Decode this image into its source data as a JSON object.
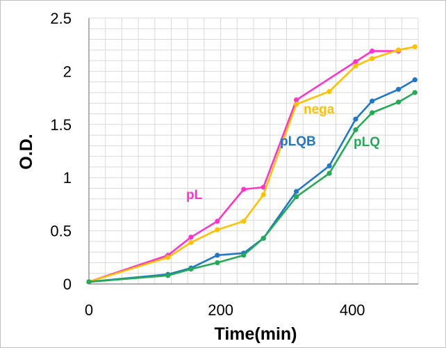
{
  "chart_data": {
    "type": "line",
    "xlabel": "Time(min)",
    "ylabel": "O.D.",
    "xlim": [
      0,
      500
    ],
    "ylim": [
      0,
      2.5
    ],
    "x_ticks": [
      "0",
      "200",
      "400"
    ],
    "y_ticks": [
      "0",
      "0.5",
      "1",
      "1.5",
      "2",
      "2.5"
    ],
    "grid": true,
    "legend": "none (series labeled inline)",
    "series": [
      {
        "name": "pL",
        "color": "#ff33cc",
        "x": [
          0,
          120,
          155,
          195,
          235,
          265,
          315,
          405,
          430,
          470
        ],
        "y": [
          0.02,
          0.27,
          0.44,
          0.59,
          0.89,
          0.91,
          1.73,
          2.09,
          2.19,
          2.19
        ]
      },
      {
        "name": "nega",
        "color": "#ffc000",
        "x": [
          0,
          120,
          155,
          195,
          235,
          265,
          315,
          365,
          405,
          430,
          470,
          495
        ],
        "y": [
          0.02,
          0.25,
          0.39,
          0.51,
          0.59,
          0.84,
          1.69,
          1.81,
          2.05,
          2.12,
          2.2,
          2.23
        ]
      },
      {
        "name": "pLQB",
        "color": "#1f77c9",
        "x": [
          0,
          120,
          155,
          195,
          235,
          265,
          315,
          365,
          405,
          430,
          470,
          495
        ],
        "y": [
          0.02,
          0.09,
          0.15,
          0.27,
          0.29,
          0.43,
          0.87,
          1.11,
          1.55,
          1.72,
          1.83,
          1.92
        ]
      },
      {
        "name": "pLQ",
        "color": "#22aa55",
        "x": [
          0,
          120,
          155,
          195,
          235,
          265,
          315,
          365,
          405,
          430,
          470,
          495
        ],
        "y": [
          0.02,
          0.08,
          0.14,
          0.2,
          0.27,
          0.43,
          0.82,
          1.04,
          1.45,
          1.61,
          1.71,
          1.8
        ]
      }
    ]
  }
}
